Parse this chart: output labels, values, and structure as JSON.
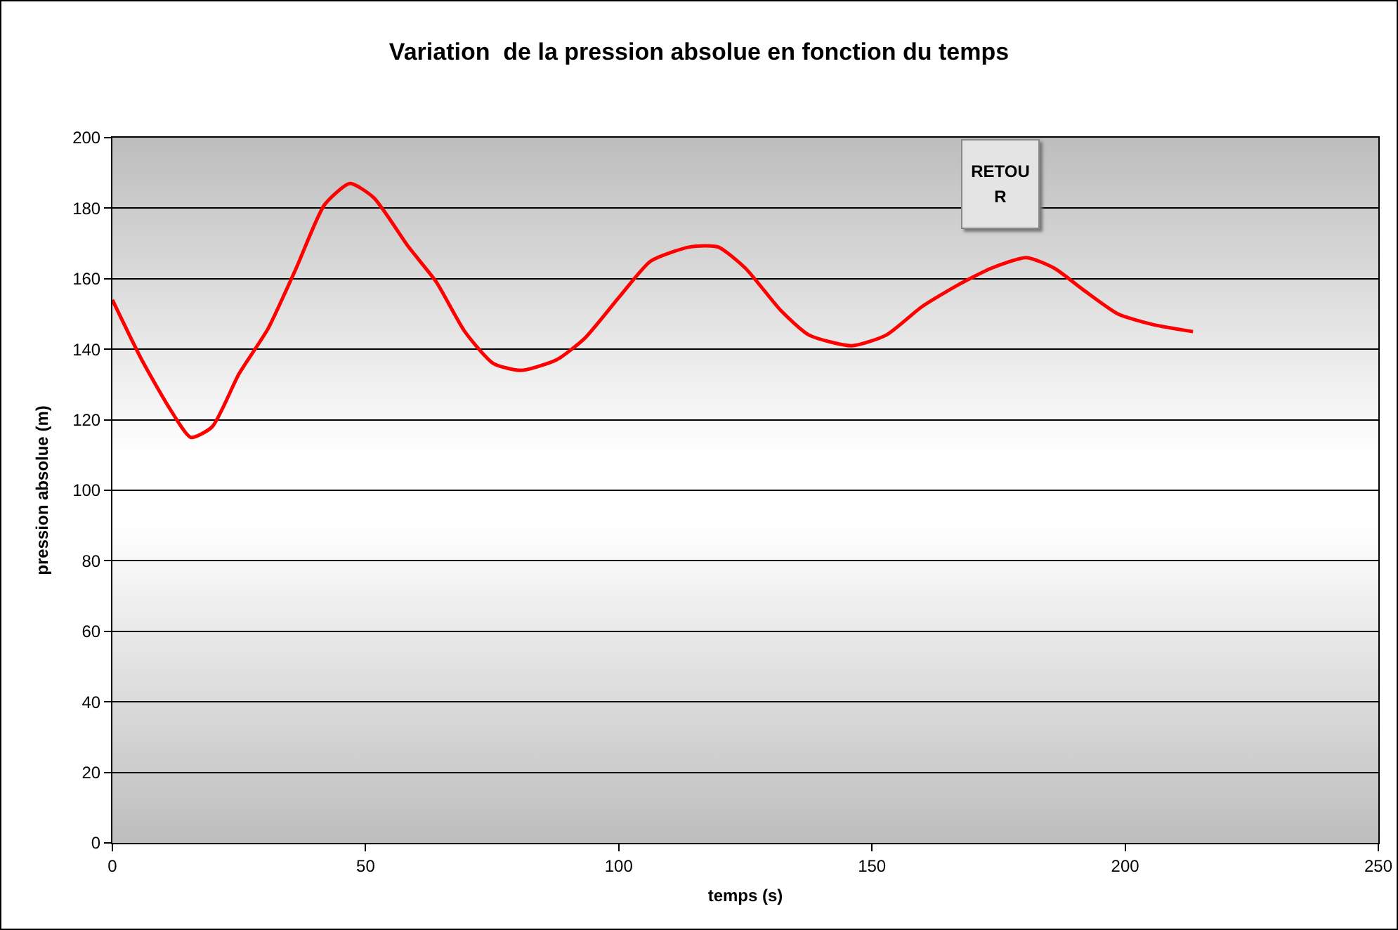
{
  "chart_data": {
    "type": "line",
    "title": "Variation  de la pression absolue en fonction du temps",
    "xlabel": "temps (s)",
    "ylabel": "pression absolue (m)",
    "annotations": [
      "RETOUR"
    ],
    "series": [
      {
        "color": "#ff0000",
        "x": [
          0,
          5.8,
          11.4,
          15.5,
          19.7,
          25,
          30.8,
          36.3,
          41.9,
          46.9,
          51.6,
          58.5,
          64,
          69.6,
          75.2,
          80.7,
          87.7,
          93.2,
          100.2,
          106.3,
          114,
          119.6,
          125,
          132,
          137.6,
          146,
          152.8,
          159.8,
          166.7,
          173.6,
          180.5,
          186,
          191.6,
          198.6,
          205.5,
          213.4
        ],
        "values": [
          154,
          137,
          123,
          115,
          118,
          133,
          146,
          163,
          181,
          187,
          183,
          169,
          159,
          145,
          136,
          134,
          137,
          143,
          155,
          165,
          169,
          169,
          163,
          151,
          144,
          141,
          144,
          152,
          158,
          163,
          166,
          163,
          157,
          150,
          147,
          145
        ]
      }
    ],
    "xlim": [
      0,
      250
    ],
    "xticks": [
      0,
      50,
      100,
      150,
      200,
      250
    ],
    "ylim": [
      0,
      200
    ],
    "yticks": [
      0,
      20,
      40,
      60,
      80,
      100,
      120,
      140,
      160,
      180,
      200
    ],
    "grid": "y",
    "marker": "none",
    "line_style": "solid"
  }
}
